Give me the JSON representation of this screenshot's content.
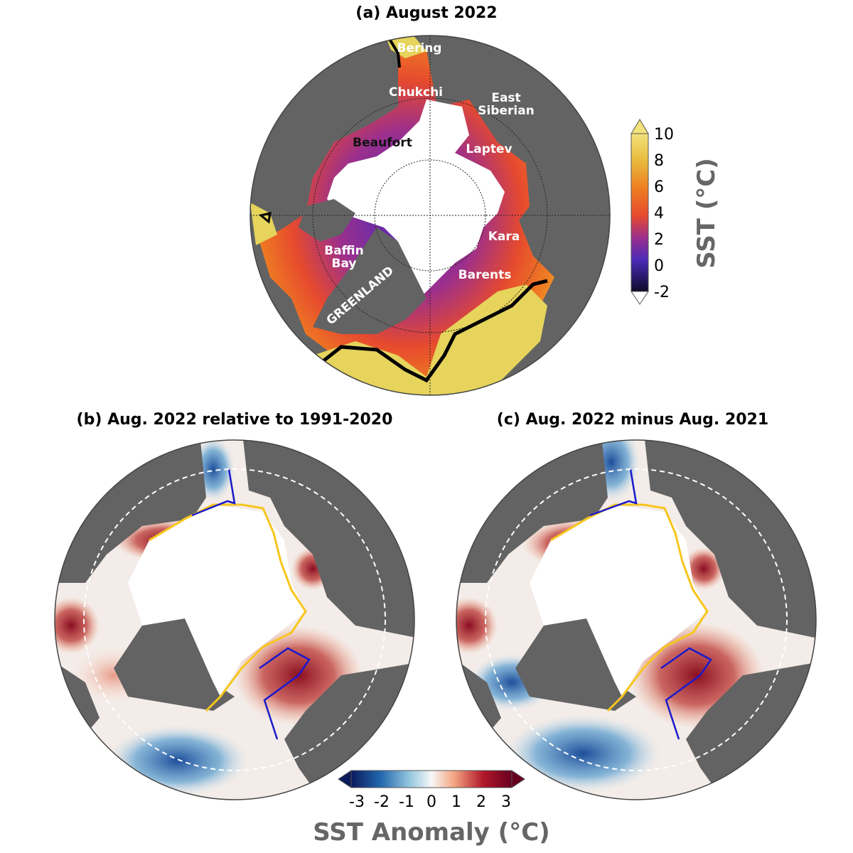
{
  "panels": {
    "a": {
      "title": "(a) August 2022",
      "labels": {
        "bering": "Bering",
        "chukchi": "Chukchi",
        "east_siberian_1": "East",
        "east_siberian_2": "Siberian",
        "beaufort": "Beaufort",
        "laptev": "Laptev",
        "kara": "Kara",
        "baffin_1": "Baffin",
        "baffin_2": "Bay",
        "barents": "Barents",
        "greenland": "GREENLAND"
      }
    },
    "b": {
      "title": "(b) Aug. 2022 relative to 1991-2020"
    },
    "c": {
      "title": "(c) Aug. 2022 minus Aug. 2021"
    }
  },
  "colorbar_sst": {
    "label": "SST (°C)",
    "ticks": [
      "10",
      "8",
      "6",
      "4",
      "2",
      "0",
      "-2"
    ],
    "colors": [
      "#f2e27a",
      "#e8b83a",
      "#ef7d22",
      "#e64a2e",
      "#9b2f8d",
      "#4b2bb8",
      "#0d0a2a"
    ]
  },
  "colorbar_anomaly": {
    "label": "SST Anomaly (°C)",
    "ticks": [
      "-3",
      "-2",
      "-1",
      "0",
      "1",
      "2",
      "3"
    ],
    "colors": [
      "#0b1a5c",
      "#2166ac",
      "#92c5de",
      "#f7f7f7",
      "#f4a582",
      "#b2182b",
      "#67001f"
    ]
  },
  "colors": {
    "land": "#636363",
    "ice": "#ffffff",
    "sst_contour": "#000000",
    "ice_edge": "#f7c61d",
    "region_box": "#1a1acc"
  }
}
